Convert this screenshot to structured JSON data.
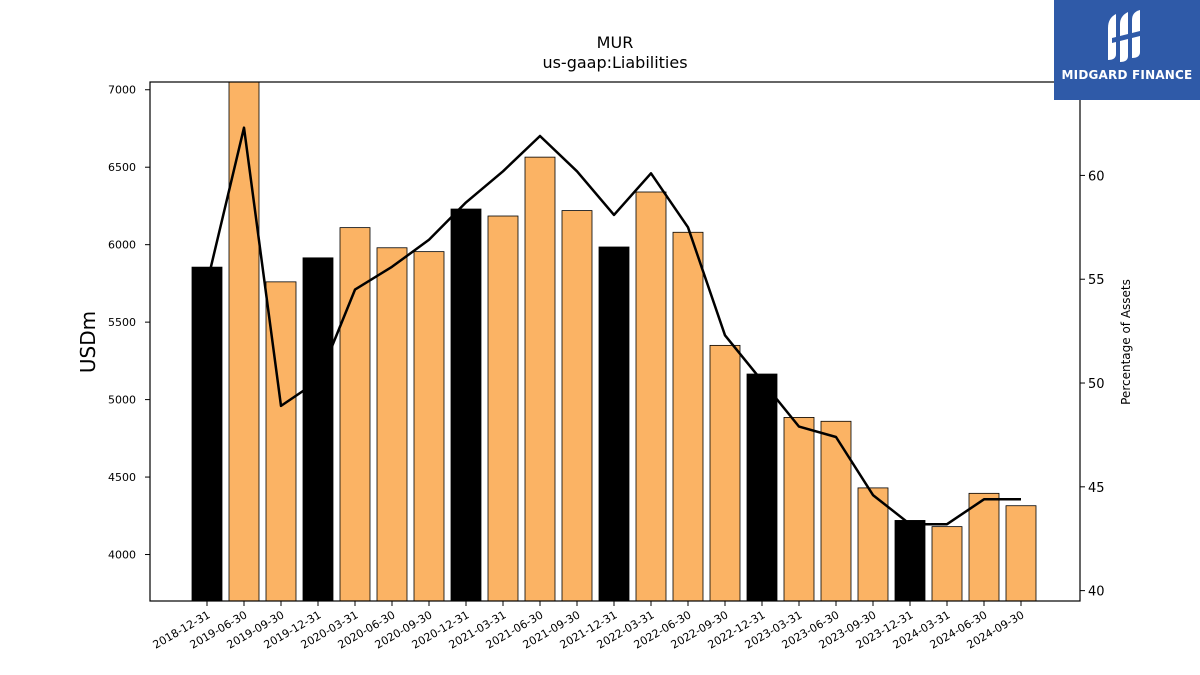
{
  "brand": {
    "name": "MIDGARD FINANCE",
    "icon": "midgard-logo-icon",
    "color": "#2f5aa8"
  },
  "chart_data": {
    "type": "bar",
    "title": "MUR",
    "subtitle": "us-gaap:Liabilities",
    "ylabel": "USDm",
    "y2label": "Percentage of Assets",
    "ylim": [
      3700,
      7050
    ],
    "y2lim": [
      39.5,
      64.5
    ],
    "yticks": [
      4000,
      4500,
      5000,
      5500,
      6000,
      6500,
      7000
    ],
    "y2ticks": [
      40,
      45,
      50,
      55,
      60
    ],
    "categories": [
      "2018-12-31",
      "2019-06-30",
      "2019-09-30",
      "2019-12-31",
      "2020-03-31",
      "2020-06-30",
      "2020-09-30",
      "2020-12-31",
      "2021-03-31",
      "2021-06-30",
      "2021-09-30",
      "2021-12-31",
      "2022-03-31",
      "2022-06-30",
      "2022-09-30",
      "2022-12-31",
      "2023-03-31",
      "2023-06-30",
      "2023-09-30",
      "2023-12-31",
      "2024-03-31",
      "2024-06-30",
      "2024-09-30"
    ],
    "series": [
      {
        "type": "bar",
        "axis": "left",
        "values": [
          5855,
          7050,
          5760,
          5915,
          6110,
          5980,
          5955,
          6230,
          6185,
          6565,
          6220,
          5985,
          6340,
          6080,
          5350,
          5165,
          4885,
          4860,
          4430,
          4220,
          4180,
          4395,
          4315
        ],
        "annual": [
          true,
          false,
          false,
          true,
          false,
          false,
          false,
          true,
          false,
          false,
          false,
          true,
          false,
          false,
          false,
          true,
          false,
          false,
          false,
          true,
          false,
          false,
          false
        ]
      },
      {
        "type": "line",
        "axis": "right",
        "values": [
          54.8,
          62.3,
          48.9,
          50.1,
          54.5,
          55.6,
          56.9,
          58.7,
          60.2,
          61.9,
          60.2,
          58.1,
          60.1,
          57.5,
          52.3,
          50.1,
          47.9,
          47.4,
          44.6,
          43.2,
          43.2,
          44.4,
          44.4
        ]
      }
    ],
    "colors": {
      "annual_bar": "#000000",
      "quarter_bar": "#fbb364",
      "line": "#000000"
    }
  }
}
